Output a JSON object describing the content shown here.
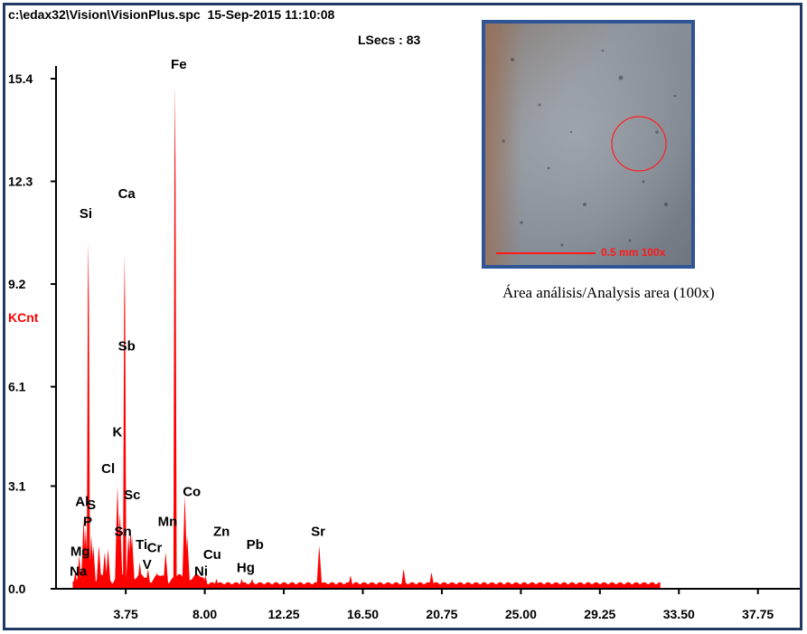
{
  "header": {
    "file_path": "c:\\edax32\\Vision\\VisionPlus.spc",
    "timestamp": "15-Sep-2015 11:10:08",
    "live_secs": "LSecs : 83"
  },
  "inset": {
    "caption": "Área análisis/Analysis area (100x)",
    "scale_bar_label": "0.5 mm  100x"
  },
  "colors": {
    "spectrum": "#ff0000",
    "frame": "#1f3864",
    "inset_border": "#2f5597"
  },
  "chart_data": {
    "type": "area",
    "ylabel": "KCnt",
    "xlim": [
      0,
      40
    ],
    "ylim": [
      0,
      15.4
    ],
    "y_ticks": [
      "0.0",
      "3.1",
      "6.1",
      "9.2",
      "12.3",
      "15.4"
    ],
    "y_tick_values": [
      0,
      3.1,
      6.1,
      9.2,
      12.3,
      15.4
    ],
    "x_ticks": [
      "3.75",
      "8.00",
      "12.25",
      "16.50",
      "20.75",
      "25.00",
      "29.25",
      "33.50",
      "37.75"
    ],
    "x_tick_values": [
      3.75,
      8.0,
      12.25,
      16.5,
      20.75,
      25.0,
      29.25,
      33.5,
      37.75
    ],
    "peaks": [
      {
        "energy": 1.04,
        "kcnt": 0.5
      },
      {
        "energy": 1.25,
        "kcnt": 1.0
      },
      {
        "energy": 1.49,
        "kcnt": 2.1
      },
      {
        "energy": 1.6,
        "kcnt": 1.8
      },
      {
        "energy": 1.74,
        "kcnt": 10.5
      },
      {
        "energy": 1.9,
        "kcnt": 1.6
      },
      {
        "energy": 2.01,
        "kcnt": 1.3
      },
      {
        "energy": 2.31,
        "kcnt": 1.3
      },
      {
        "energy": 2.62,
        "kcnt": 1.1
      },
      {
        "energy": 2.8,
        "kcnt": 1.2
      },
      {
        "energy": 3.31,
        "kcnt": 3.1
      },
      {
        "energy": 3.44,
        "kcnt": 2.3
      },
      {
        "energy": 3.69,
        "kcnt": 10.1
      },
      {
        "energy": 3.9,
        "kcnt": 1.6
      },
      {
        "energy": 4.01,
        "kcnt": 1.8
      },
      {
        "energy": 4.09,
        "kcnt": 1.6
      },
      {
        "energy": 4.51,
        "kcnt": 0.8
      },
      {
        "energy": 4.95,
        "kcnt": 0.6
      },
      {
        "energy": 5.41,
        "kcnt": 0.5
      },
      {
        "energy": 5.9,
        "kcnt": 1.1
      },
      {
        "energy": 6.4,
        "kcnt": 15.2
      },
      {
        "energy": 6.93,
        "kcnt": 2.8
      },
      {
        "energy": 7.06,
        "kcnt": 1.6
      },
      {
        "energy": 7.47,
        "kcnt": 0.4
      },
      {
        "energy": 8.04,
        "kcnt": 0.4
      },
      {
        "energy": 8.63,
        "kcnt": 0.3
      },
      {
        "energy": 9.99,
        "kcnt": 0.3
      },
      {
        "energy": 10.55,
        "kcnt": 0.3
      },
      {
        "energy": 14.16,
        "kcnt": 1.3
      },
      {
        "energy": 15.84,
        "kcnt": 0.4
      },
      {
        "energy": 18.7,
        "kcnt": 0.6
      },
      {
        "energy": 20.2,
        "kcnt": 0.5
      }
    ],
    "annotations": [
      {
        "text": "Fe",
        "energy": 6.6,
        "kcnt": 15.7
      },
      {
        "text": "Si",
        "energy": 1.6,
        "kcnt": 11.2
      },
      {
        "text": "Ca",
        "energy": 3.8,
        "kcnt": 11.8
      },
      {
        "text": "Sb",
        "energy": 3.8,
        "kcnt": 7.2
      },
      {
        "text": "K",
        "energy": 3.3,
        "kcnt": 4.6
      },
      {
        "text": "Cl",
        "energy": 2.8,
        "kcnt": 3.5
      },
      {
        "text": "Al",
        "energy": 1.4,
        "kcnt": 2.5
      },
      {
        "text": "S",
        "energy": 1.9,
        "kcnt": 2.4
      },
      {
        "text": "Sc",
        "energy": 4.1,
        "kcnt": 2.7
      },
      {
        "text": "Co",
        "energy": 7.3,
        "kcnt": 2.8
      },
      {
        "text": "P",
        "energy": 1.7,
        "kcnt": 1.9
      },
      {
        "text": "Sn",
        "energy": 3.6,
        "kcnt": 1.6
      },
      {
        "text": "Mn",
        "energy": 6.0,
        "kcnt": 1.9
      },
      {
        "text": "Zn",
        "energy": 8.9,
        "kcnt": 1.6
      },
      {
        "text": "Sr",
        "energy": 14.1,
        "kcnt": 1.6
      },
      {
        "text": "Mg",
        "energy": 1.3,
        "kcnt": 1.0
      },
      {
        "text": "Ti",
        "energy": 4.6,
        "kcnt": 1.2
      },
      {
        "text": "Cr",
        "energy": 5.3,
        "kcnt": 1.1
      },
      {
        "text": "Cu",
        "energy": 8.4,
        "kcnt": 0.9
      },
      {
        "text": "Pb",
        "energy": 10.7,
        "kcnt": 1.2
      },
      {
        "text": "Na",
        "energy": 1.2,
        "kcnt": 0.4
      },
      {
        "text": "V",
        "energy": 4.9,
        "kcnt": 0.6
      },
      {
        "text": "Ni",
        "energy": 7.8,
        "kcnt": 0.4
      },
      {
        "text": "Hg",
        "energy": 10.2,
        "kcnt": 0.5
      }
    ]
  }
}
